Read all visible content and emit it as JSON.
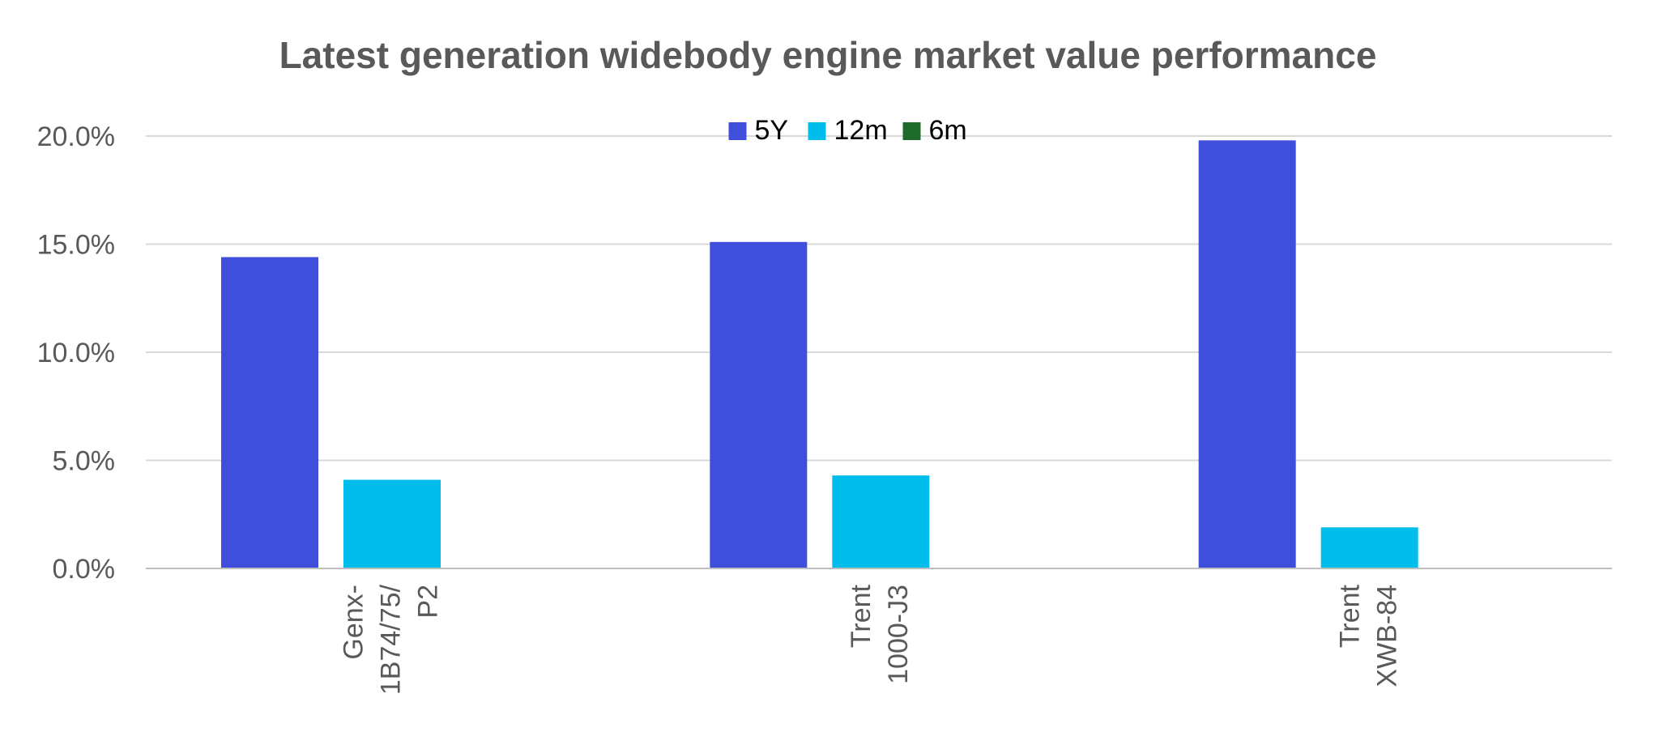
{
  "chart_data": {
    "type": "bar",
    "title": "Latest generation widebody engine market value performance",
    "xlabel": "",
    "ylabel": "",
    "categories": [
      [
        "Genx-",
        "1B74/75/",
        "P2"
      ],
      [
        "Trent",
        "1000-J3"
      ],
      [
        "Trent",
        "XWB-84"
      ]
    ],
    "series": [
      {
        "name": "5Y",
        "color": "#3f4fdb",
        "values": [
          14.4,
          15.1,
          19.8
        ]
      },
      {
        "name": "12m",
        "color": "#00bdec",
        "values": [
          4.1,
          4.3,
          1.9
        ]
      },
      {
        "name": "6m",
        "color": "#1e6b2b",
        "values": [
          0,
          0,
          0
        ]
      }
    ],
    "ylim": [
      0,
      20
    ],
    "yticks": [
      0,
      5,
      10,
      15,
      20
    ],
    "ytick_labels": [
      "0.0%",
      "5.0%",
      "10.0%",
      "15.0%",
      "20.0%"
    ],
    "grid": true,
    "legend_position": "top-center"
  }
}
